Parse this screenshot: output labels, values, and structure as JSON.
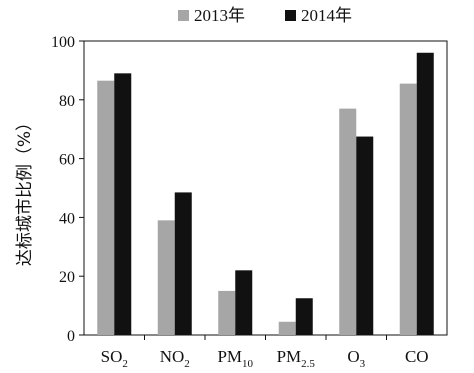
{
  "chart_data": {
    "type": "bar",
    "categories": [
      {
        "base": "SO",
        "sub": "2"
      },
      {
        "base": "NO",
        "sub": "2"
      },
      {
        "base": "PM",
        "sub": "10"
      },
      {
        "base": "PM",
        "sub": "2.5"
      },
      {
        "base": "O",
        "sub": "3"
      },
      {
        "base": "CO",
        "sub": ""
      }
    ],
    "series": [
      {
        "name": "2013年",
        "color": "#a6a6a6",
        "values": [
          86.5,
          39,
          15,
          4.5,
          77,
          85.5
        ]
      },
      {
        "name": "2014年",
        "color": "#111111",
        "values": [
          89,
          48.5,
          22,
          12.5,
          67.5,
          96
        ]
      }
    ],
    "ylabel": "达标城市比例（%）",
    "ylim": [
      0,
      100
    ],
    "yticks": [
      "0",
      "20",
      "40",
      "60",
      "80",
      "100"
    ],
    "legend_position": "top-center",
    "grid": false
  }
}
